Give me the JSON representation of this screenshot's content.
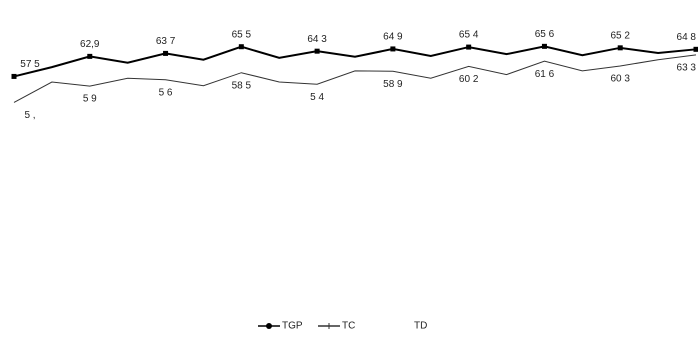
{
  "chart_data": {
    "type": "line",
    "categories": [
      null,
      null,
      null,
      null,
      null,
      null,
      null,
      null,
      null,
      null,
      null,
      null,
      null,
      null,
      null,
      null,
      null,
      null,
      null
    ],
    "ylim": [
      0,
      70
    ],
    "series": [
      {
        "name": "TGP",
        "color": "#000000",
        "marker": "circle",
        "values": [
          57.5,
          60.0,
          62.9,
          61.2,
          63.7,
          62.0,
          65.5,
          62.5,
          64.3,
          62.8,
          64.9,
          63.0,
          65.4,
          63.5,
          65.6,
          63.2,
          65.2,
          63.8,
          64.8
        ],
        "value_labels": [
          "57 5",
          null,
          "62,9",
          null,
          "63 7",
          null,
          "65 5",
          null,
          "64 3",
          null,
          "64 9",
          null,
          "65 4",
          null,
          "65 6",
          null,
          "65 2",
          null,
          "64 8"
        ]
      },
      {
        "name": "TC",
        "color": "#333333",
        "marker": "dash",
        "values": [
          50.5,
          56.0,
          54.9,
          57.0,
          56.6,
          55.0,
          58.5,
          56.0,
          55.4,
          59.0,
          58.9,
          57.0,
          60.2,
          58.0,
          61.6,
          59.0,
          60.3,
          62.0,
          63.3
        ],
        "value_labels": [
          "5 ,",
          null,
          "5 9",
          null,
          "5 6",
          null,
          "58 5",
          null,
          "5 4",
          null,
          "58 9",
          null,
          "60 2",
          null,
          "61 6",
          null,
          "60 3",
          null,
          "63 3"
        ]
      },
      {
        "name": "TD",
        "color": "#000000",
        "marker": "none",
        "values": [
          null,
          null,
          null,
          null,
          null,
          null,
          null,
          null,
          null,
          null,
          null,
          null,
          null,
          null,
          null,
          null,
          null,
          null,
          null
        ]
      }
    ],
    "legend": "bottom"
  }
}
